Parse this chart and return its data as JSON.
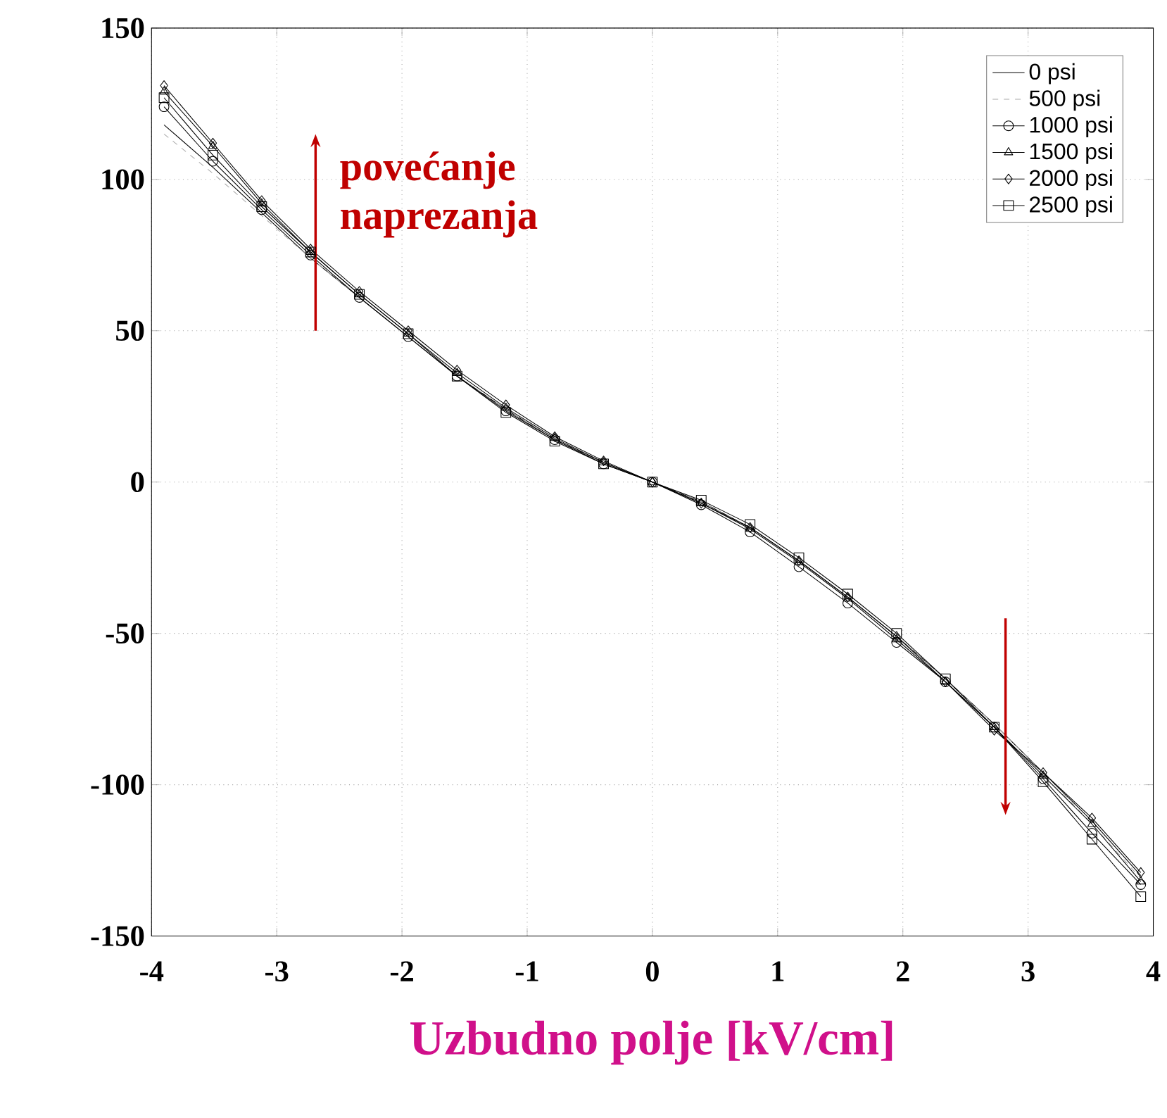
{
  "chart_data": {
    "type": "line",
    "xlabel": "Uzbudno polje [kV/cm]",
    "annotations": [
      "povećanje naprezanja"
    ],
    "x": [
      -3.9,
      -3.51,
      -3.12,
      -2.73,
      -2.34,
      -1.95,
      -1.56,
      -1.17,
      -0.78,
      -0.39,
      0,
      0.39,
      0.78,
      1.17,
      1.56,
      1.95,
      2.34,
      2.73,
      3.12,
      3.51,
      3.9
    ],
    "series": [
      {
        "name": "0 psi",
        "color": "#000000",
        "line_style": "solid",
        "values": [
          118,
          104,
          89,
          74,
          61,
          48,
          35,
          24,
          14,
          6.5,
          0,
          -6.5,
          -15,
          -26,
          -38,
          -51,
          -65,
          -80,
          -96,
          -112,
          -130
        ]
      },
      {
        "name": "500 psi",
        "color": "#aaaaaa",
        "line_style": "dashed",
        "values": [
          115,
          102,
          88,
          74,
          61,
          48,
          35,
          24,
          14,
          6.5,
          0,
          -6.5,
          -15,
          -26,
          -38,
          -51,
          -65,
          -80,
          -96,
          -113,
          -131
        ]
      },
      {
        "name": "1000 psi",
        "color": "#000000",
        "marker": "circle",
        "line_style": "solid",
        "values": [
          124,
          106,
          90,
          75,
          61,
          48,
          35,
          23.5,
          14,
          6,
          0,
          -7.5,
          -16.5,
          -28,
          -40,
          -53,
          -66,
          -81,
          -98,
          -116,
          -133
        ]
      },
      {
        "name": "1500 psi",
        "color": "#000000",
        "marker": "triangle",
        "line_style": "solid",
        "values": [
          129,
          111,
          92,
          76,
          62,
          49,
          36,
          24.5,
          14.5,
          6.5,
          0,
          -7,
          -15.5,
          -26.5,
          -38.5,
          -52,
          -66,
          -81,
          -97,
          -113,
          -132
        ]
      },
      {
        "name": "2000 psi",
        "color": "#000000",
        "marker": "diamond",
        "line_style": "solid",
        "values": [
          131,
          112,
          93,
          77,
          63,
          50,
          37,
          25.5,
          15,
          7,
          0,
          -7,
          -15,
          -26,
          -38,
          -51,
          -66,
          -82,
          -96,
          -111,
          -129
        ]
      },
      {
        "name": "2500 psi",
        "color": "#000000",
        "marker": "square",
        "line_style": "solid",
        "values": [
          127,
          108,
          91,
          76,
          62,
          49,
          35,
          23,
          13.5,
          6,
          0,
          -6,
          -14,
          -25,
          -37,
          -50,
          -65,
          -81,
          -99,
          -118,
          -137
        ]
      }
    ],
    "xlim": [
      -4,
      4
    ],
    "ylim": [
      -150,
      150
    ],
    "xticks": [
      -4,
      -3,
      -2,
      -1,
      0,
      1,
      2,
      3,
      4
    ],
    "yticks": [
      -150,
      -100,
      -50,
      0,
      50,
      100,
      150
    ],
    "grid": true,
    "legend": "top right"
  }
}
